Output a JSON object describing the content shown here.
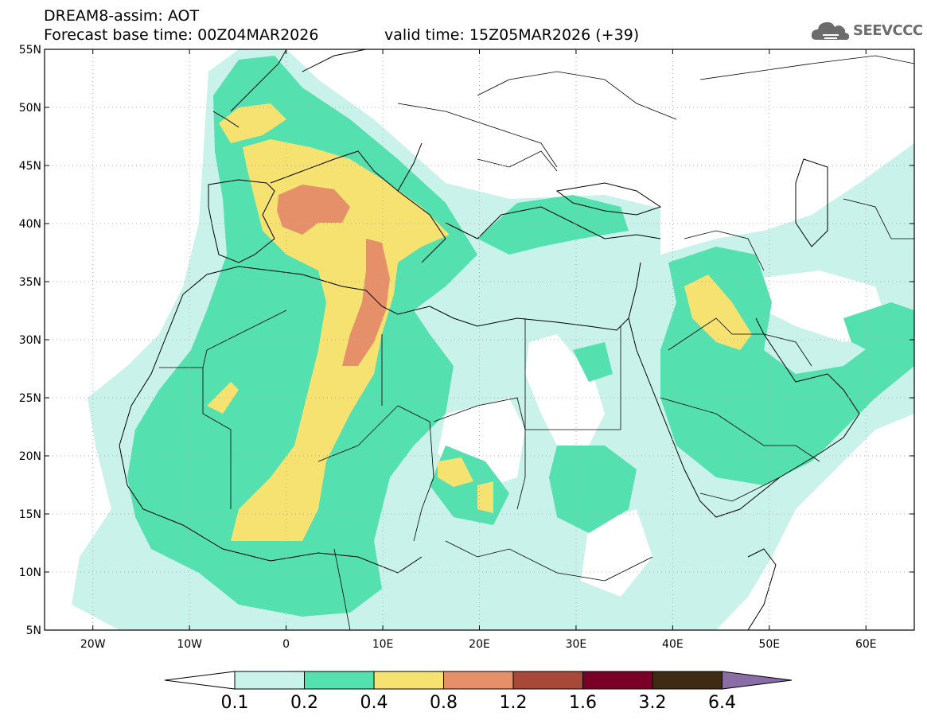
{
  "header": {
    "title": "DREAM8-assim: AOT",
    "base_time": "Forecast base time: 00Z04MAR2026",
    "valid_time": "valid time: 15Z05MAR2026 (+39)"
  },
  "logo": {
    "text": "SEEVCCC",
    "icon": "cloud-icon"
  },
  "map": {
    "extent": {
      "lon": [
        -25,
        65
      ],
      "lat": [
        5,
        55
      ]
    },
    "lat_ticks": [
      {
        "value": 55,
        "label": "55N"
      },
      {
        "value": 50,
        "label": "50N"
      },
      {
        "value": 45,
        "label": "45N"
      },
      {
        "value": 40,
        "label": "40N"
      },
      {
        "value": 35,
        "label": "35N"
      },
      {
        "value": 30,
        "label": "30N"
      },
      {
        "value": 25,
        "label": "25N"
      },
      {
        "value": 20,
        "label": "20N"
      },
      {
        "value": 15,
        "label": "15N"
      },
      {
        "value": 10,
        "label": "10N"
      },
      {
        "value": 5,
        "label": "5N"
      }
    ],
    "lon_ticks": [
      {
        "value": -20,
        "label": "20W"
      },
      {
        "value": -10,
        "label": "10W"
      },
      {
        "value": 0,
        "label": "0"
      },
      {
        "value": 10,
        "label": "10E"
      },
      {
        "value": 20,
        "label": "20E"
      },
      {
        "value": 30,
        "label": "30E"
      },
      {
        "value": 40,
        "label": "40E"
      },
      {
        "value": 50,
        "label": "50E"
      },
      {
        "value": 60,
        "label": "60E"
      }
    ],
    "grid": "dotted"
  },
  "colorbar": {
    "labels": [
      "0.1",
      "0.2",
      "0.4",
      "0.8",
      "1.2",
      "1.6",
      "3.2",
      "6.4"
    ],
    "colors": [
      "#c8f2ea",
      "#55e0b0",
      "#f5e270",
      "#e6906a",
      "#a84838",
      "#7a0028",
      "#3f2a14",
      "#8a6ca6"
    ]
  }
}
